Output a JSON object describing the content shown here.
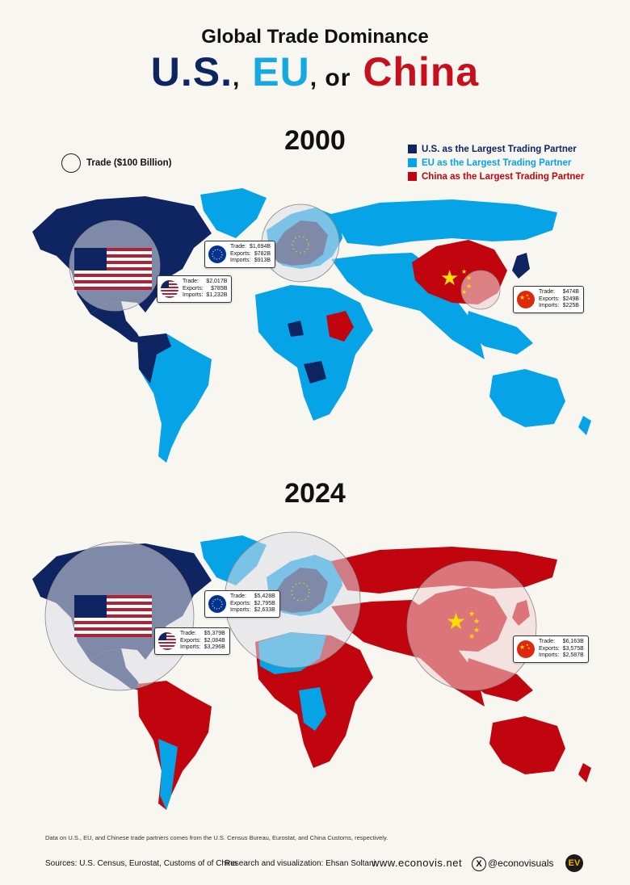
{
  "header": {
    "title_small": "Global Trade Dominance",
    "title_us": "U.S.",
    "comma1": ",",
    "title_eu": "EU",
    "connector": ", or",
    "title_china": "China"
  },
  "colors": {
    "us": "#0e2561",
    "eu": "#06a3e6",
    "china": "#c0050f",
    "us_title": "#0e2561",
    "eu_title": "#15a8e3",
    "china_title": "#c8101d"
  },
  "legend": {
    "items": [
      {
        "label": "U.S. as the Largest Trading Partner",
        "color": "#0e2561"
      },
      {
        "label": "EU as the Largest Trading Partner",
        "color": "#06a3e6"
      },
      {
        "label": "China as the Largest Trading Partner",
        "color": "#c0050f"
      }
    ]
  },
  "scale": {
    "label": "Trade ($100 Billion)",
    "unit_billion": 100
  },
  "maps": [
    {
      "year": "2000",
      "callouts": [
        {
          "entity": "EU",
          "flag": "eu-flag-icon",
          "trade_label": "Trade:",
          "trade": "$1,694B",
          "exports_label": "Exports:",
          "exports": "$782B",
          "imports_label": "Imports:",
          "imports": "$913B",
          "trade_billion": 1694
        },
        {
          "entity": "U.S.",
          "flag": "us-flag-icon",
          "trade_label": "Trade:",
          "trade": "$2,017B",
          "exports_label": "Exports:",
          "exports": "$785B",
          "imports_label": "Imports:",
          "imports": "$1,232B",
          "trade_billion": 2017
        },
        {
          "entity": "China",
          "flag": "china-flag-icon",
          "trade_label": "Trade:",
          "trade": "$474B",
          "exports_label": "Exports:",
          "exports": "$249B",
          "imports_label": "Imports:",
          "imports": "$225B",
          "trade_billion": 474
        }
      ]
    },
    {
      "year": "2024",
      "callouts": [
        {
          "entity": "EU",
          "flag": "eu-flag-icon",
          "trade_label": "Trade:",
          "trade": "$5,428B",
          "exports_label": "Exports:",
          "exports": "$2,795B",
          "imports_label": "Imports:",
          "imports": "$2,633B",
          "trade_billion": 5428
        },
        {
          "entity": "U.S.",
          "flag": "us-flag-icon",
          "trade_label": "Trade:",
          "trade": "$5,379B",
          "exports_label": "Exports:",
          "exports": "$2,084B",
          "imports_label": "Imports:",
          "imports": "$3,296B",
          "trade_billion": 5379
        },
        {
          "entity": "China",
          "flag": "china-flag-icon",
          "trade_label": "Trade:",
          "trade": "$6,163B",
          "exports_label": "Exports:",
          "exports": "$3,575B",
          "imports_label": "Imports:",
          "imports": "$2,587B",
          "trade_billion": 6163
        }
      ]
    }
  ],
  "footnote": "Data on U.S., EU, and Chinese trade partners comes from the U.S. Census Bureau, Eurostat, and China Customs, respectively.",
  "footer": {
    "sources": "Sources: U.S. Census, Eurostat, Customs of of China",
    "research": "Research and visualization: Ehsan Soltani",
    "website": "www.econovis.net",
    "x_icon": "x-logo-icon",
    "x_icon_glyph": "X",
    "handle": "@econovisuals",
    "logo": "ev-logo-icon",
    "logo_text": "EV"
  }
}
